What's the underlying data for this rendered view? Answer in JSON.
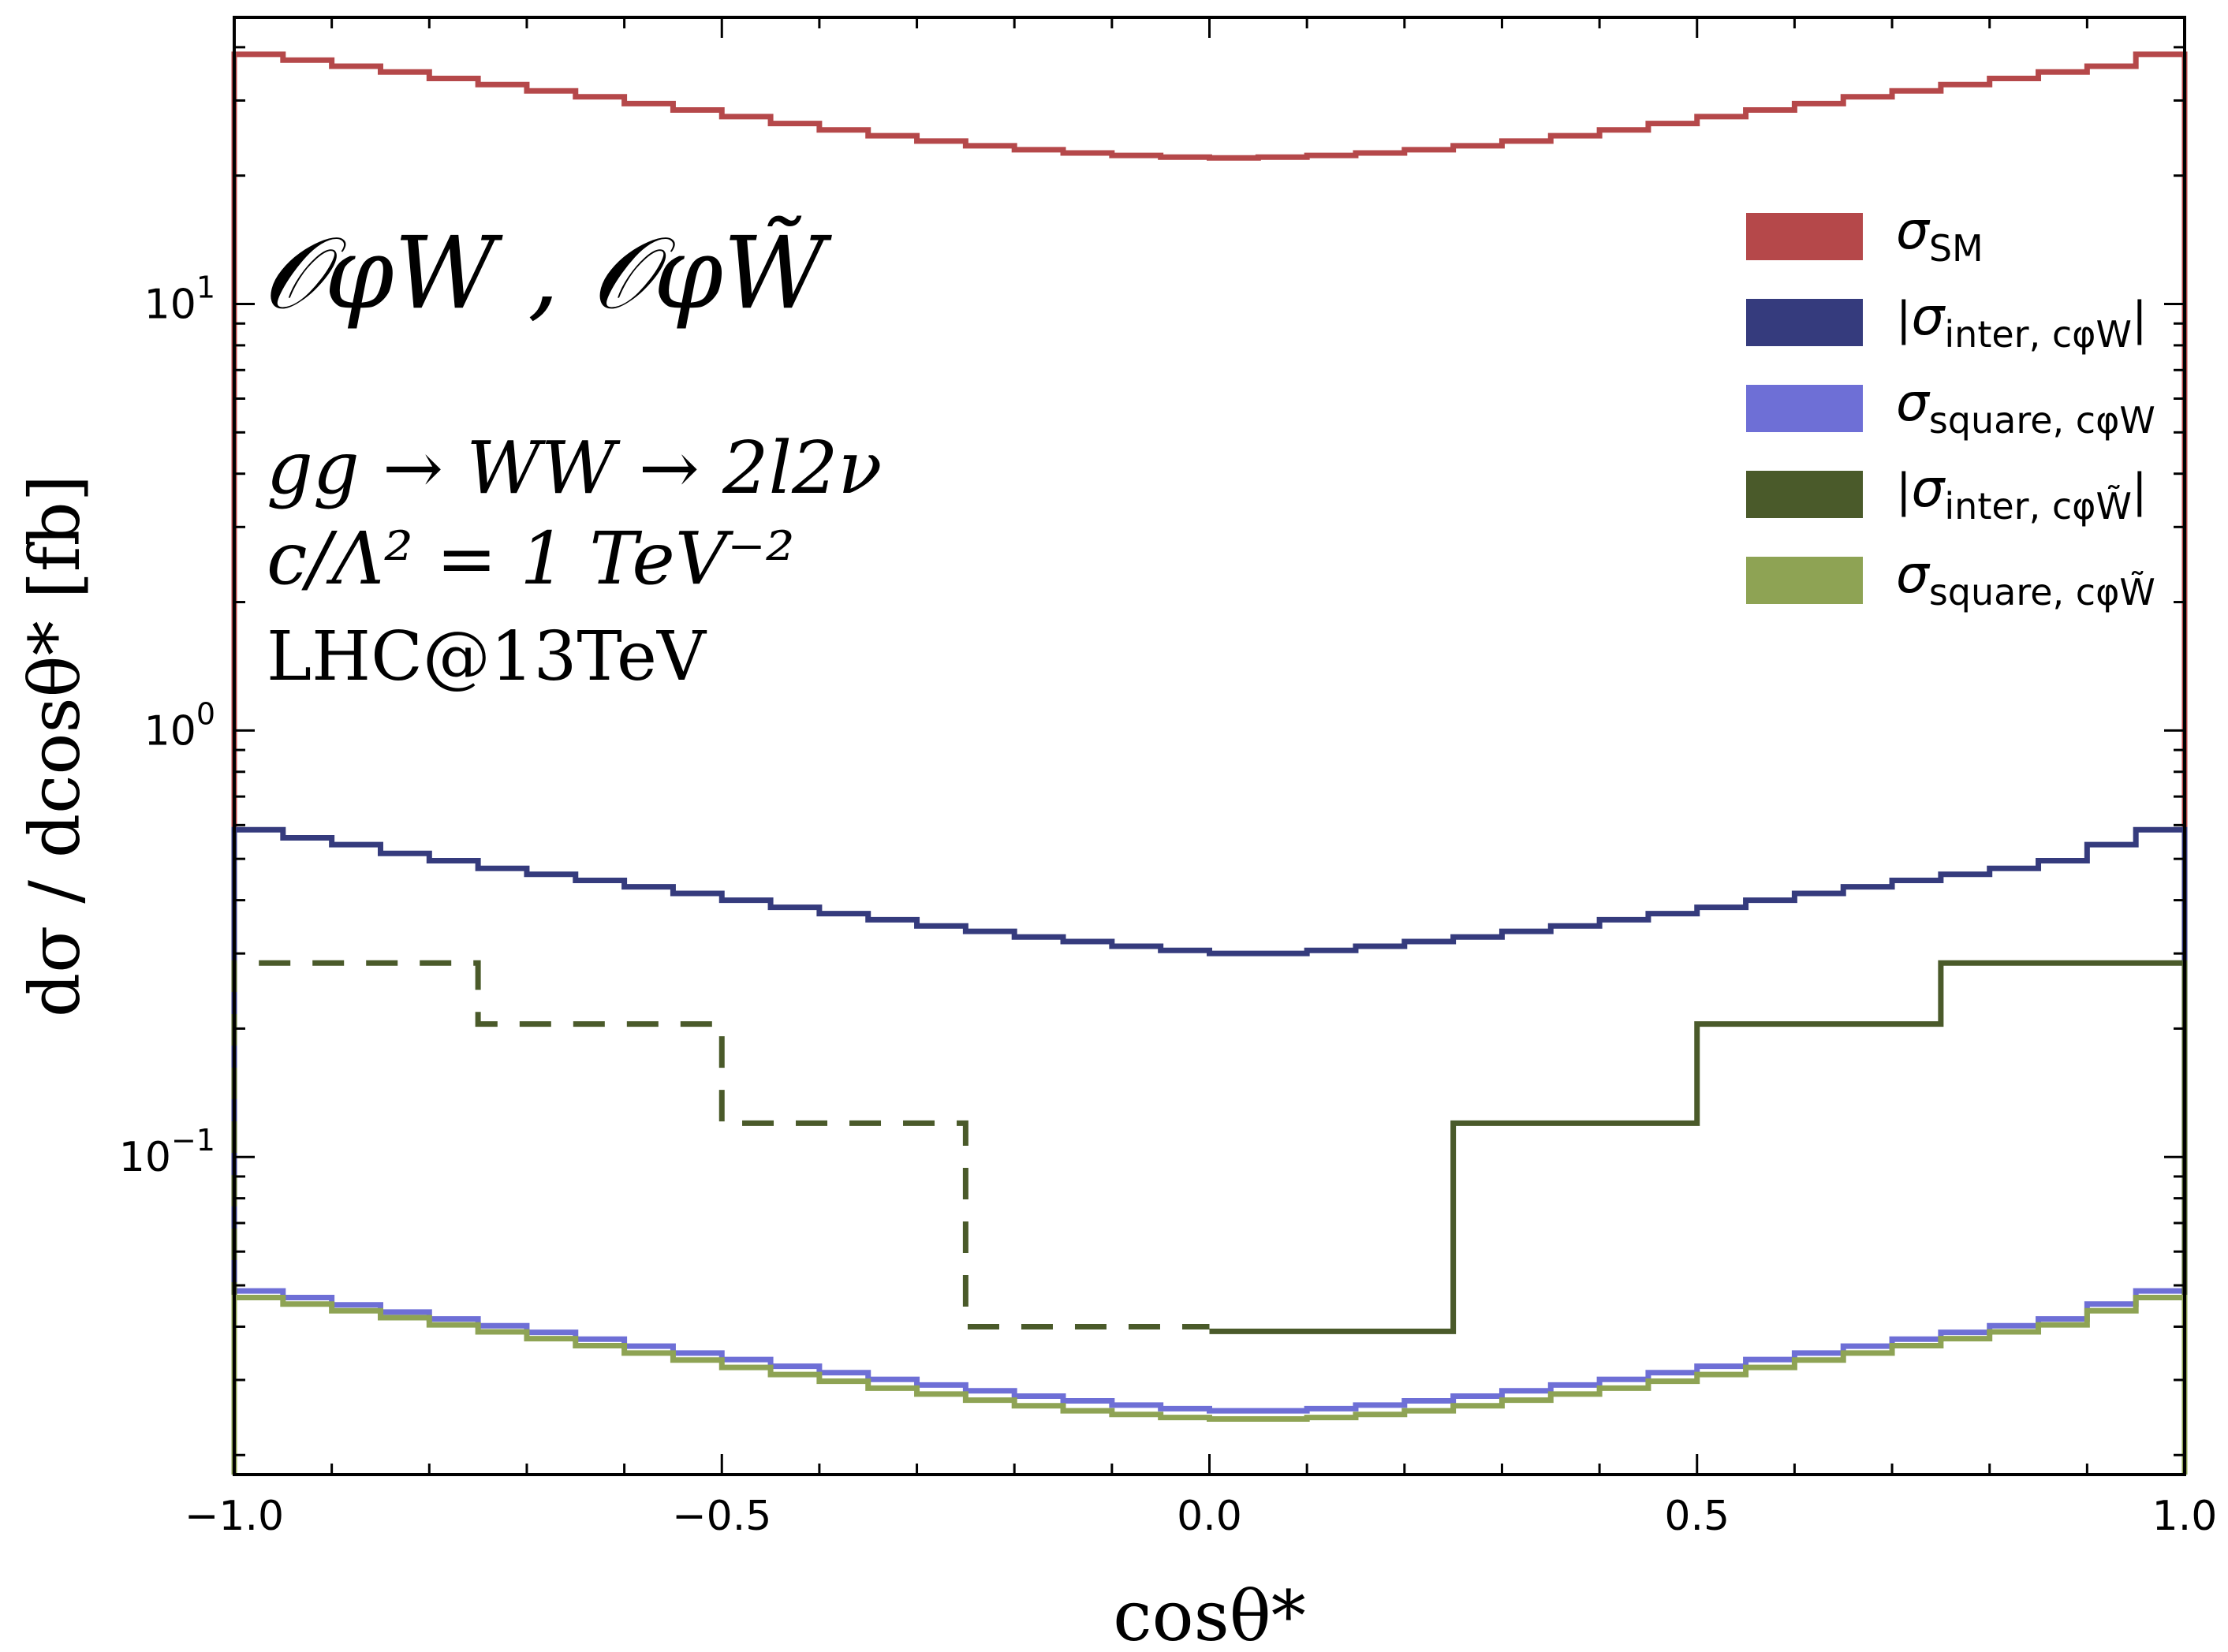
{
  "chart_data": {
    "type": "line",
    "style": "step",
    "xlabel": "cosθ*",
    "ylabel": "dσ / dcosθ* [fb]",
    "xlim": [
      -1.0,
      1.0
    ],
    "ylim": [
      0.018,
      47
    ],
    "yscale": "log",
    "x_ticks": [
      {
        "v": -1.0,
        "label": "−1.0"
      },
      {
        "v": -0.5,
        "label": "−0.5"
      },
      {
        "v": 0.0,
        "label": "0.0"
      },
      {
        "v": 0.5,
        "label": "0.5"
      },
      {
        "v": 1.0,
        "label": "1.0"
      }
    ],
    "y_ticks": [
      {
        "v": 10,
        "base": "10",
        "exp": "1"
      },
      {
        "v": 1,
        "base": "10",
        "exp": "0"
      },
      {
        "v": 0.1,
        "base": "10",
        "exp": "−1"
      }
    ],
    "annotations": {
      "operators": "𝒪φW , 𝒪φW̃",
      "process": "gg → WW → 2l2ν",
      "coupling": "c/Λ² = 1 TeV⁻²",
      "collider": "LHC@13TeV"
    },
    "series": [
      {
        "name": "σSM",
        "legend_main": "σ",
        "legend_sub": "SM",
        "legend_bars": false,
        "color": "#b5484a",
        "dash": "",
        "bin_width": 0.05,
        "values": [
          38.5,
          37.3,
          36.1,
          35.0,
          33.8,
          32.7,
          31.6,
          30.6,
          29.5,
          28.5,
          27.5,
          26.5,
          25.6,
          24.8,
          24.1,
          23.5,
          23.0,
          22.6,
          22.3,
          22.1,
          22.0,
          22.1,
          22.3,
          22.6,
          23.0,
          23.5,
          24.1,
          24.8,
          25.6,
          26.5,
          27.5,
          28.5,
          29.5,
          30.6,
          31.6,
          32.7,
          33.8,
          35.0,
          36.1,
          38.5
        ]
      },
      {
        "name": "|σinter, cφW|",
        "legend_main": "σ",
        "legend_sub": "inter, cφW",
        "legend_bars": true,
        "color": "#353b7d",
        "dash": "",
        "bin_width": 0.05,
        "values": [
          0.585,
          0.56,
          0.54,
          0.515,
          0.495,
          0.475,
          0.46,
          0.445,
          0.43,
          0.415,
          0.4,
          0.385,
          0.372,
          0.36,
          0.348,
          0.338,
          0.328,
          0.32,
          0.312,
          0.305,
          0.3,
          0.3,
          0.305,
          0.312,
          0.32,
          0.328,
          0.338,
          0.348,
          0.36,
          0.372,
          0.385,
          0.4,
          0.415,
          0.43,
          0.445,
          0.46,
          0.475,
          0.495,
          0.54,
          0.585
        ]
      },
      {
        "name": "σsquare, cφW",
        "legend_main": "σ",
        "legend_sub": "square, cφW",
        "legend_bars": false,
        "color": "#6e6fd6",
        "dash": "",
        "bin_width": 0.05,
        "values": [
          0.0485,
          0.0468,
          0.045,
          0.0433,
          0.0417,
          0.0402,
          0.0388,
          0.0374,
          0.036,
          0.0347,
          0.0335,
          0.0323,
          0.0312,
          0.0301,
          0.0292,
          0.0283,
          0.0275,
          0.0268,
          0.0262,
          0.0257,
          0.0254,
          0.0254,
          0.0257,
          0.0262,
          0.0268,
          0.0275,
          0.0283,
          0.0292,
          0.0301,
          0.0312,
          0.0323,
          0.0335,
          0.0347,
          0.036,
          0.0374,
          0.0388,
          0.0402,
          0.0417,
          0.0452,
          0.0485
        ]
      },
      {
        "name": "|σinter, cφW̃|",
        "legend_main": "σ",
        "legend_sub": "inter, cφW̃",
        "legend_bars": true,
        "color": "#4a5a2a",
        "dash": "",
        "negative_dash": "40,28",
        "bin_width": 0.25,
        "values": [
          -0.285,
          -0.205,
          -0.12,
          -0.04,
          0.039,
          0.12,
          0.205,
          0.285
        ]
      },
      {
        "name": "σsquare, cφW̃",
        "legend_main": "σ",
        "legend_sub": "square, cφW̃",
        "legend_bars": false,
        "color": "#8ea354",
        "dash": "",
        "bin_width": 0.05,
        "values": [
          0.0468,
          0.0452,
          0.0436,
          0.042,
          0.0404,
          0.0389,
          0.0375,
          0.0361,
          0.0347,
          0.0334,
          0.0321,
          0.0309,
          0.0298,
          0.0287,
          0.0278,
          0.0269,
          0.0261,
          0.0254,
          0.0249,
          0.0245,
          0.0243,
          0.0243,
          0.0245,
          0.0249,
          0.0254,
          0.0261,
          0.0269,
          0.0278,
          0.0287,
          0.0298,
          0.0309,
          0.0321,
          0.0334,
          0.0347,
          0.0361,
          0.0375,
          0.0389,
          0.0404,
          0.0436,
          0.0468
        ]
      }
    ]
  }
}
